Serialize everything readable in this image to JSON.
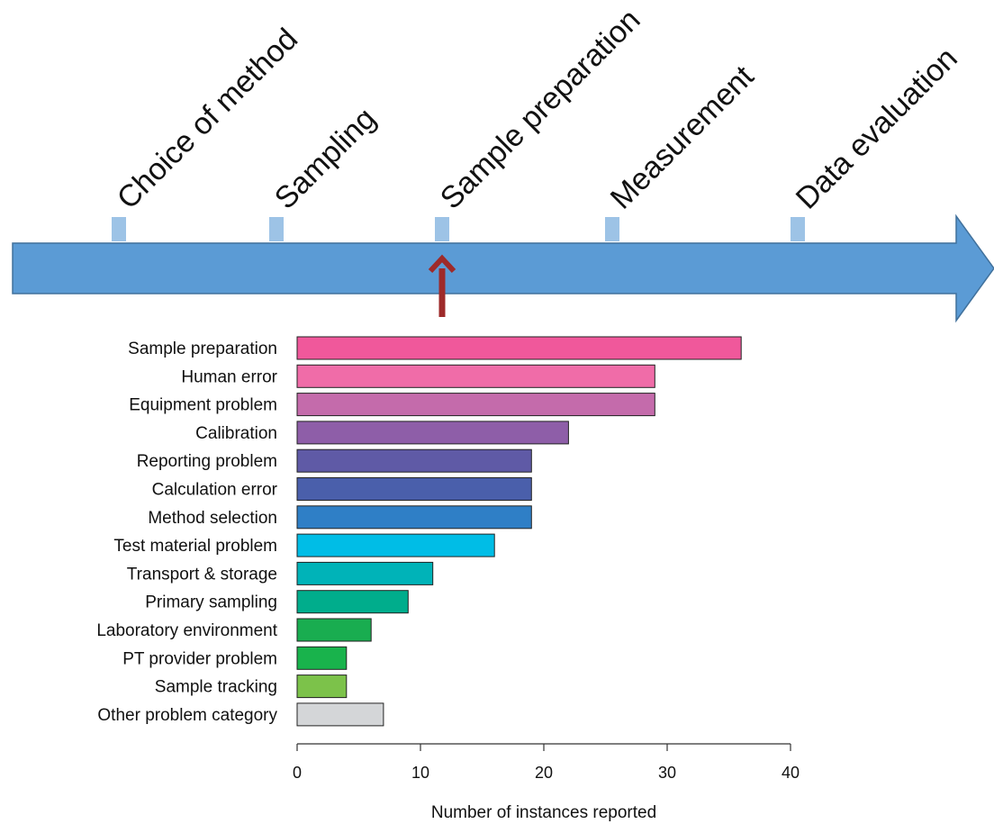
{
  "process": {
    "stages": [
      "Choice of method",
      "Sampling",
      "Sample preparation",
      "Measurement",
      "Data evaluation"
    ],
    "highlighted_stage": "Sample preparation",
    "colors": {
      "arrow": "#5b9bd5",
      "arrow_border": "#41719c",
      "marker": "#9dc3e6",
      "pointer": "#9e2a2a"
    }
  },
  "chart_data": {
    "type": "bar",
    "orientation": "horizontal",
    "categories": [
      "Sample preparation",
      "Human error",
      "Equipment problem",
      "Calibration",
      "Reporting problem",
      "Calculation error",
      "Method selection",
      "Test material problem",
      "Transport & storage",
      "Primary sampling",
      "Laboratory environment",
      "PT provider problem",
      "Sample tracking",
      "Other problem category"
    ],
    "values": [
      36,
      29,
      29,
      22,
      19,
      19,
      19,
      16,
      11,
      9,
      6,
      4,
      4,
      7
    ],
    "colors": [
      "#f0589b",
      "#f06ca8",
      "#c46bab",
      "#8e5ea8",
      "#5f5aa6",
      "#4a5fab",
      "#2f7fc6",
      "#00bde6",
      "#00b3b8",
      "#00ad8c",
      "#19ad50",
      "#19b34c",
      "#7cc24a",
      "#d4d6d8"
    ],
    "xlabel": "Number of instances reported",
    "xlim": [
      0,
      40
    ],
    "xticks": [
      0,
      10,
      20,
      30,
      40
    ],
    "grid": false,
    "legend": "none"
  }
}
